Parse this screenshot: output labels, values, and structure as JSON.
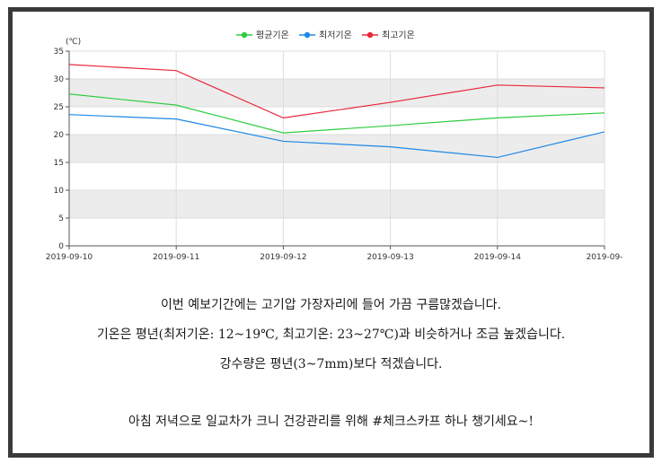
{
  "chart_data": {
    "type": "line",
    "unit_label": "(℃)",
    "x": [
      "2019-09-10",
      "2019-09-11",
      "2019-09-12",
      "2019-09-13",
      "2019-09-14",
      "2019-09-"
    ],
    "y_ticks": [
      "0",
      "5",
      "10",
      "15",
      "20",
      "25",
      "30",
      "35"
    ],
    "ylim": [
      0,
      35
    ],
    "grid": "horizontal alternating bands",
    "legend_position": "top-center",
    "series": [
      {
        "name": "평균기온",
        "color": "#2ecc40",
        "values": [
          27.3,
          25.3,
          20.3,
          21.6,
          23.0,
          23.9
        ]
      },
      {
        "name": "최저기온",
        "color": "#1e88e5",
        "values": [
          23.6,
          22.8,
          18.8,
          17.8,
          15.9,
          20.5
        ]
      },
      {
        "name": "최고기온",
        "color": "#e8283c",
        "values": [
          32.6,
          31.5,
          23.0,
          25.8,
          28.9,
          28.4
        ]
      }
    ]
  },
  "captions": [
    "이번 예보기간에는 고기압 가장자리에 들어 가끔 구름많겠습니다.",
    "기온은 평년(최저기온: 12~19℃, 최고기온: 23~27℃)과 비슷하거나 조금 높겠습니다.",
    "강수량은 평년(3~7mm)보다 적겠습니다.",
    "아침 저녁으로 일교차가 크니 건강관리를 위해 #체크스카프 하나 챙기세요~!"
  ]
}
